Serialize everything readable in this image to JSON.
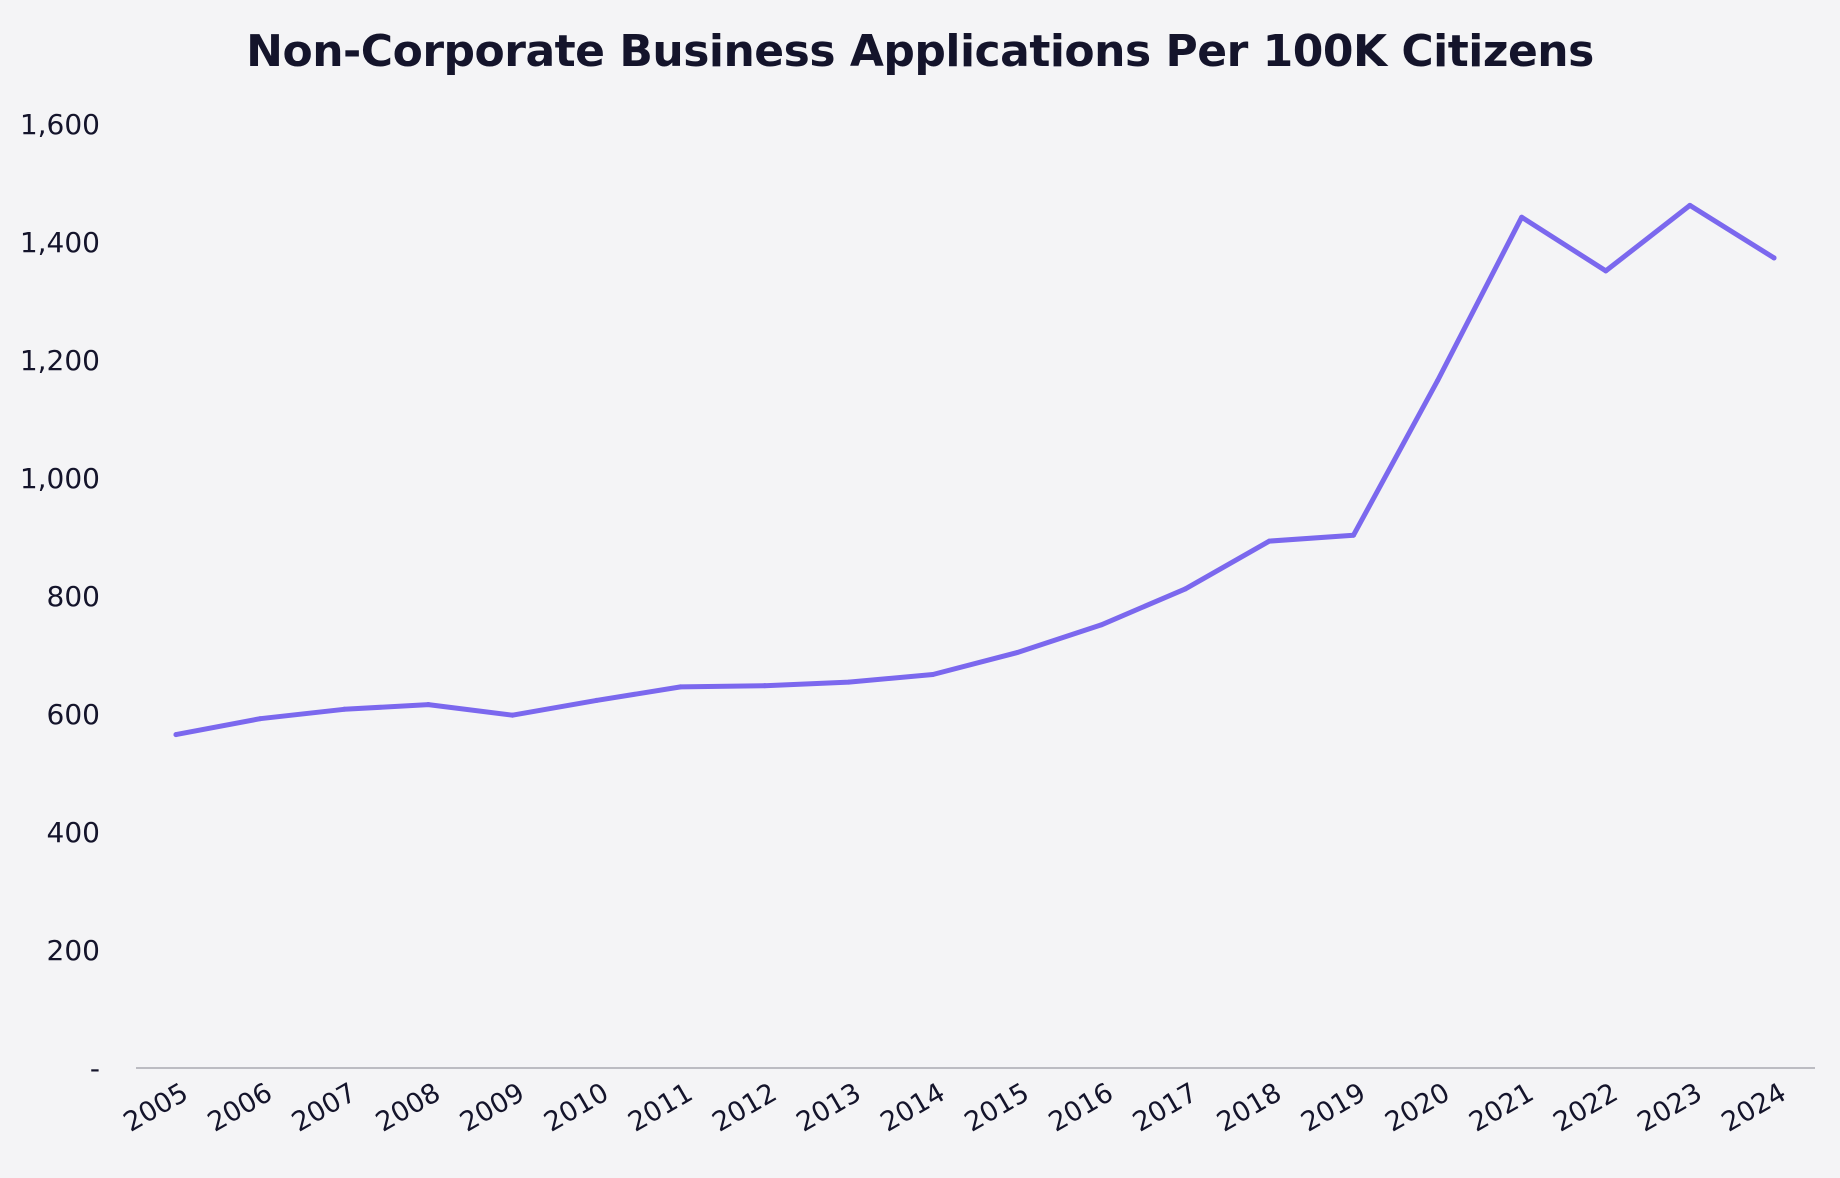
{
  "chart_data": {
    "type": "line",
    "title": "Non-Corporate Business Applications Per 100K Citizens",
    "xlabel": "",
    "ylabel": "",
    "categories": [
      "2005",
      "2006",
      "2007",
      "2008",
      "2009",
      "2010",
      "2011",
      "2012",
      "2013",
      "2014",
      "2015",
      "2016",
      "2017",
      "2018",
      "2019",
      "2020",
      "2021",
      "2022",
      "2023",
      "2024"
    ],
    "series": [
      {
        "values": [
          565,
          592,
          608,
          616,
          598,
          623,
          646,
          648,
          654,
          667,
          704,
          751,
          812,
          893,
          903,
          1165,
          1442,
          1351,
          1462,
          1373
        ]
      }
    ],
    "ylim": [
      0,
      1600
    ],
    "yticks": [
      0,
      200,
      400,
      600,
      800,
      1000,
      1200,
      1400,
      1600
    ],
    "ytick_labels": [
      "-",
      "200",
      "400",
      "600",
      "800",
      "1,000",
      "1,200",
      "1,400",
      "1,600"
    ],
    "grid": false,
    "legend": "none",
    "colors": {
      "line": "#7b68ee",
      "axis": "#a9a9b1",
      "text": "#14142b",
      "background": "#f4f4f6"
    }
  }
}
